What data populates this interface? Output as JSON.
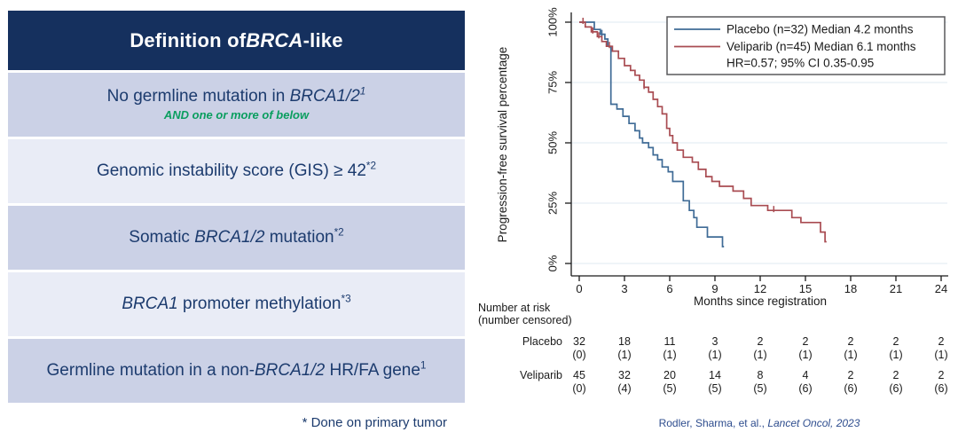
{
  "colors": {
    "header_bg": "#15305e",
    "row_dark": "#cbd1e6",
    "row_light": "#e9ecf6",
    "navy_text": "#1c3b6e",
    "green_text": "#0a9e5f",
    "placebo": "#3f6b96",
    "veliparib": "#a94c52",
    "grid": "#dfe9f1",
    "axis": "#1a1a1a",
    "legend_border": "#58595b",
    "citation": "#2e4d8e"
  },
  "table": {
    "header": [
      {
        "t": "Definition of "
      },
      {
        "t": "BRCA",
        "i": true
      },
      {
        "t": "-like"
      }
    ],
    "rows": [
      {
        "shade": "dark",
        "main": [
          {
            "t": "No germline mutation in "
          },
          {
            "t": "BRCA1/2",
            "i": true
          },
          {
            "t": "1",
            "sup": true,
            "i": true
          }
        ],
        "sub": [
          {
            "t": "AND one or more of below"
          }
        ]
      },
      {
        "shade": "light",
        "main": [
          {
            "t": "Genomic instability score (GIS) ≥ 42"
          },
          {
            "t": "*2",
            "sup": true
          }
        ]
      },
      {
        "shade": "dark",
        "main": [
          {
            "t": "Somatic "
          },
          {
            "t": "BRCA1/2",
            "i": true
          },
          {
            "t": " mutation"
          },
          {
            "t": "*2",
            "sup": true
          }
        ]
      },
      {
        "shade": "light",
        "main": [
          {
            "t": "BRCA1",
            "i": true
          },
          {
            "t": " promoter methylation"
          },
          {
            "t": "*3",
            "sup": true
          }
        ]
      },
      {
        "shade": "dark",
        "main": [
          {
            "t": "Germline mutation in a non-"
          },
          {
            "t": "BRCA1/2",
            "i": true
          },
          {
            "t": " HR/FA gene"
          },
          {
            "t": "1",
            "sup": true
          }
        ]
      }
    ],
    "footnote": "* Done on primary tumor"
  },
  "chart_data": {
    "type": "line",
    "subtype": "kaplan-meier-step",
    "title": "",
    "xlabel": "Months since registration",
    "ylabel": "Progression-free survival percentage",
    "x_ticks": [
      0,
      3,
      6,
      9,
      12,
      15,
      18,
      21,
      24
    ],
    "y_ticks": [
      {
        "value": 0,
        "label": "0%"
      },
      {
        "value": 25,
        "label": "25%"
      },
      {
        "value": 50,
        "label": "50%"
      },
      {
        "value": 75,
        "label": "75%"
      },
      {
        "value": 100,
        "label": "100%"
      }
    ],
    "xlim": [
      0,
      24
    ],
    "ylim": [
      0,
      100
    ],
    "grid": true,
    "legend": {
      "position": "top-right",
      "entries": [
        {
          "series": "Placebo",
          "label": "Placebo (n=32)  Median 4.2 months"
        },
        {
          "series": "Veliparib",
          "label": "Veliparib (n=45)  Median 6.1 months"
        }
      ],
      "note": "HR=0.57; 95% CI 0.35-0.95"
    },
    "series": [
      {
        "name": "Placebo",
        "n": 32,
        "median_months": 4.2,
        "color_key": "placebo",
        "steps": [
          [
            1.0,
            97
          ],
          [
            1.4,
            95
          ],
          [
            1.7,
            93
          ],
          [
            1.9,
            90
          ],
          [
            2.1,
            66
          ],
          [
            2.5,
            64
          ],
          [
            2.9,
            61
          ],
          [
            3.3,
            58
          ],
          [
            3.7,
            55
          ],
          [
            4.0,
            52
          ],
          [
            4.2,
            50
          ],
          [
            4.6,
            48
          ],
          [
            4.9,
            45
          ],
          [
            5.2,
            43
          ],
          [
            5.5,
            40
          ],
          [
            5.9,
            38
          ],
          [
            6.2,
            34
          ],
          [
            6.9,
            26
          ],
          [
            7.3,
            22
          ],
          [
            7.6,
            19
          ],
          [
            7.8,
            15
          ],
          [
            8.5,
            11
          ],
          [
            9.5,
            7
          ]
        ],
        "end_time": 9.6,
        "censor_marks": [
          [
            1.5,
            95
          ]
        ]
      },
      {
        "name": "Veliparib",
        "n": 45,
        "median_months": 6.1,
        "color_key": "veliparib",
        "steps": [
          [
            0.4,
            98
          ],
          [
            0.8,
            96
          ],
          [
            1.2,
            94
          ],
          [
            1.5,
            92
          ],
          [
            1.8,
            90
          ],
          [
            2.2,
            88
          ],
          [
            2.6,
            85
          ],
          [
            3.0,
            82
          ],
          [
            3.4,
            80
          ],
          [
            3.7,
            78
          ],
          [
            4.0,
            76
          ],
          [
            4.3,
            73
          ],
          [
            4.6,
            71
          ],
          [
            4.9,
            68
          ],
          [
            5.2,
            65
          ],
          [
            5.5,
            62
          ],
          [
            5.8,
            56
          ],
          [
            6.0,
            53
          ],
          [
            6.2,
            50
          ],
          [
            6.5,
            47
          ],
          [
            6.9,
            44
          ],
          [
            7.5,
            42
          ],
          [
            7.9,
            39
          ],
          [
            8.4,
            36
          ],
          [
            8.8,
            34
          ],
          [
            9.3,
            32
          ],
          [
            10.2,
            30
          ],
          [
            10.9,
            27
          ],
          [
            11.4,
            24
          ],
          [
            12.5,
            22
          ],
          [
            14.1,
            19
          ],
          [
            14.7,
            17
          ],
          [
            16.0,
            13
          ],
          [
            16.3,
            9
          ]
        ],
        "end_time": 16.4,
        "censor_marks": [
          [
            0.25,
            100
          ],
          [
            0.9,
            96
          ],
          [
            1.3,
            94
          ],
          [
            2.0,
            90
          ],
          [
            4.3,
            73
          ],
          [
            12.9,
            22
          ]
        ]
      }
    ],
    "hazard_ratio": "HR=0.57; 95% CI 0.35-0.95",
    "risk_table": {
      "label_line1": "Number at risk",
      "label_line2": "(number censored)",
      "time_points": [
        0,
        3,
        6,
        9,
        12,
        15,
        18,
        21,
        24
      ],
      "rows": [
        {
          "name": "Placebo",
          "at_risk": [
            32,
            18,
            11,
            3,
            2,
            2,
            2,
            2,
            2
          ],
          "censored": [
            0,
            1,
            1,
            1,
            1,
            1,
            1,
            1,
            1
          ]
        },
        {
          "name": "Veliparib",
          "at_risk": [
            45,
            32,
            20,
            14,
            8,
            4,
            2,
            2,
            2
          ],
          "censored": [
            0,
            4,
            5,
            5,
            5,
            6,
            6,
            6,
            6
          ]
        }
      ]
    },
    "citation": [
      {
        "t": "Rodler, Sharma, et al., "
      },
      {
        "t": "Lancet Oncol, 2023",
        "i": true
      }
    ]
  }
}
